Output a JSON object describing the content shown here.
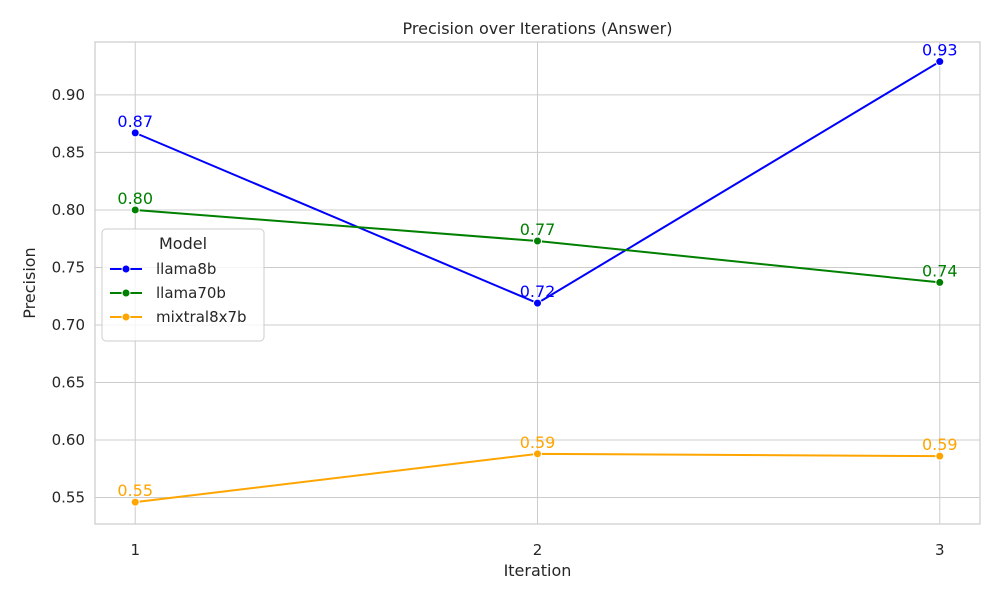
{
  "chart_data": {
    "type": "line",
    "title": "Precision over Iterations (Answer)",
    "xlabel": "Iteration",
    "ylabel": "Precision",
    "x": [
      1,
      2,
      3
    ],
    "x_tick_labels": [
      "1",
      "2",
      "3"
    ],
    "ylim": [
      0.527,
      0.946
    ],
    "y_ticks": [
      0.55,
      0.6,
      0.65,
      0.7,
      0.75,
      0.8,
      0.85,
      0.9
    ],
    "y_tick_labels": [
      "0.55",
      "0.60",
      "0.65",
      "0.70",
      "0.75",
      "0.80",
      "0.85",
      "0.90"
    ],
    "grid": true,
    "legend": {
      "title": "Model",
      "placement": "center-left"
    },
    "series": [
      {
        "name": "llama8b",
        "color": "#0000ff",
        "values": [
          0.867,
          0.719,
          0.929
        ],
        "labels": [
          "0.87",
          "0.72",
          "0.93"
        ]
      },
      {
        "name": "llama70b",
        "color": "#008000",
        "values": [
          0.8,
          0.773,
          0.737
        ],
        "labels": [
          "0.80",
          "0.77",
          "0.74"
        ]
      },
      {
        "name": "mixtral8x7b",
        "color": "#ffa500",
        "values": [
          0.546,
          0.588,
          0.586
        ],
        "labels": [
          "0.55",
          "0.59",
          "0.59"
        ]
      }
    ]
  }
}
